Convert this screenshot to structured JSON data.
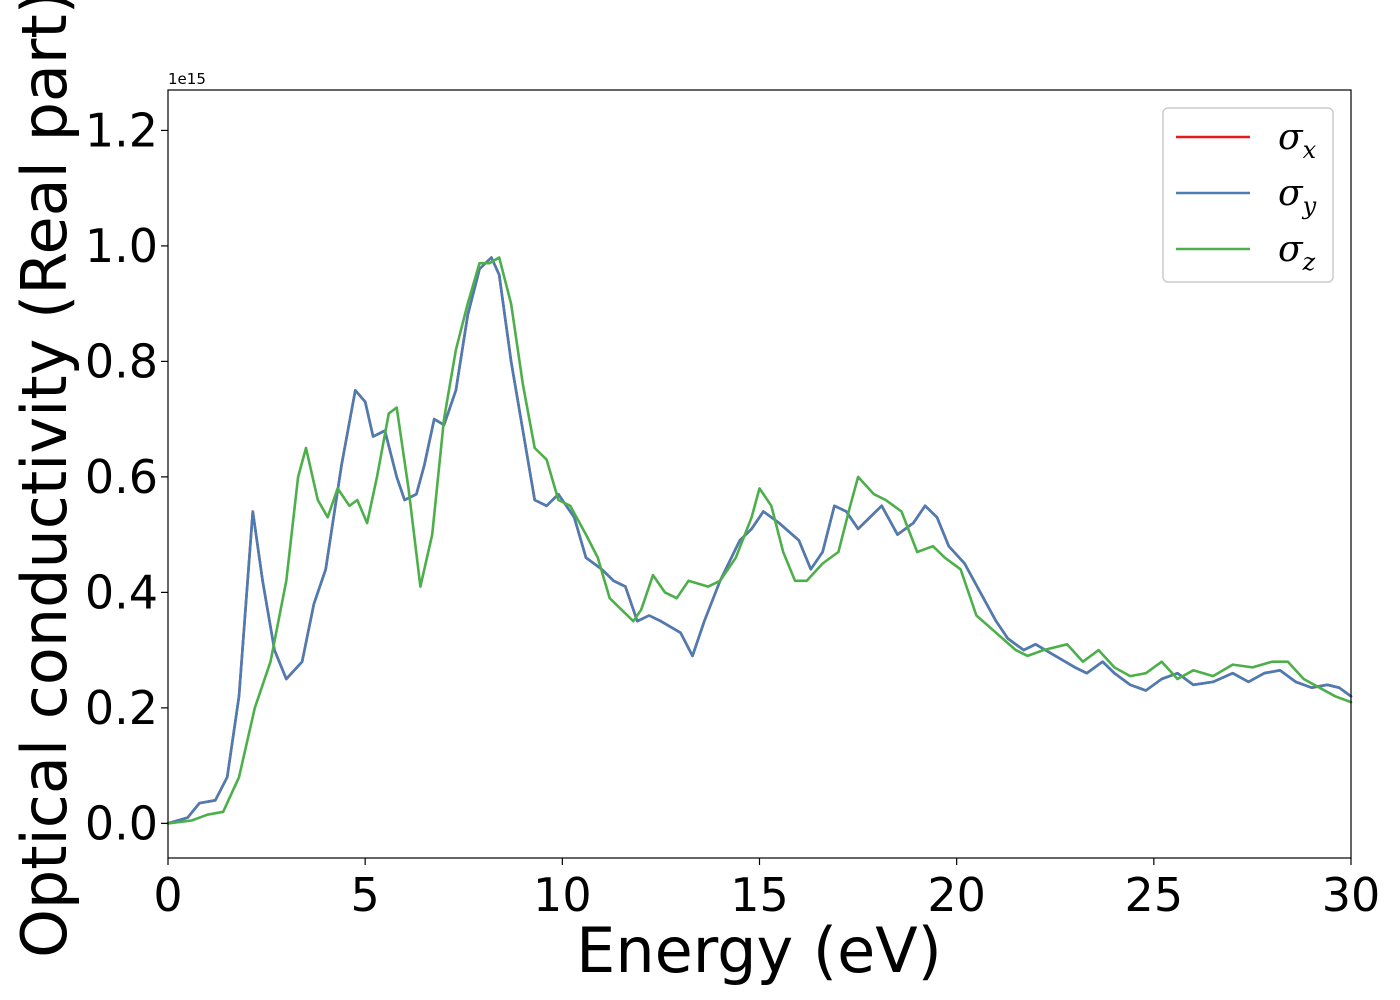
{
  "chart_data": {
    "type": "line",
    "title": "",
    "xlabel": "Energy (eV)",
    "ylabel": "Optical conductivity (Real part)",
    "y_offset_label": "1e15",
    "xlim": [
      0,
      30
    ],
    "ylim": [
      -0.06,
      1.27
    ],
    "xticks": [
      0,
      5,
      10,
      15,
      20,
      25,
      30
    ],
    "yticks": [
      0.0,
      0.2,
      0.4,
      0.6,
      0.8,
      1.0,
      1.2
    ],
    "xtick_labels": [
      "0",
      "5",
      "10",
      "15",
      "20",
      "25",
      "30"
    ],
    "ytick_labels": [
      "0.0",
      "0.2",
      "0.4",
      "0.6",
      "0.8",
      "1.0",
      "1.2"
    ],
    "grid": false,
    "legend_position": "top-right",
    "series": [
      {
        "name": "σx",
        "symbol": "σ",
        "subscript": "x",
        "color": "#e41a1c",
        "points": [
          [
            0,
            0.0
          ],
          [
            0.5,
            0.01
          ],
          [
            0.8,
            0.035
          ],
          [
            1.2,
            0.04
          ],
          [
            1.5,
            0.08
          ],
          [
            1.8,
            0.22
          ],
          [
            2.15,
            0.54
          ],
          [
            2.4,
            0.42
          ],
          [
            2.7,
            0.3
          ],
          [
            3.0,
            0.25
          ],
          [
            3.4,
            0.28
          ],
          [
            3.7,
            0.38
          ],
          [
            4.0,
            0.44
          ],
          [
            4.4,
            0.62
          ],
          [
            4.75,
            0.75
          ],
          [
            5.0,
            0.73
          ],
          [
            5.2,
            0.67
          ],
          [
            5.5,
            0.68
          ],
          [
            5.8,
            0.6
          ],
          [
            6.0,
            0.56
          ],
          [
            6.3,
            0.57
          ],
          [
            6.5,
            0.62
          ],
          [
            6.75,
            0.7
          ],
          [
            7.0,
            0.69
          ],
          [
            7.3,
            0.75
          ],
          [
            7.6,
            0.88
          ],
          [
            7.9,
            0.96
          ],
          [
            8.2,
            0.98
          ],
          [
            8.4,
            0.95
          ],
          [
            8.7,
            0.8
          ],
          [
            9.0,
            0.68
          ],
          [
            9.3,
            0.56
          ],
          [
            9.6,
            0.55
          ],
          [
            9.9,
            0.57
          ],
          [
            10.3,
            0.53
          ],
          [
            10.6,
            0.46
          ],
          [
            11.0,
            0.44
          ],
          [
            11.3,
            0.42
          ],
          [
            11.6,
            0.41
          ],
          [
            11.9,
            0.35
          ],
          [
            12.2,
            0.36
          ],
          [
            12.5,
            0.35
          ],
          [
            13.0,
            0.33
          ],
          [
            13.3,
            0.29
          ],
          [
            13.6,
            0.35
          ],
          [
            14.0,
            0.42
          ],
          [
            14.5,
            0.49
          ],
          [
            14.8,
            0.51
          ],
          [
            15.1,
            0.54
          ],
          [
            15.5,
            0.52
          ],
          [
            16.0,
            0.49
          ],
          [
            16.3,
            0.44
          ],
          [
            16.6,
            0.47
          ],
          [
            16.9,
            0.55
          ],
          [
            17.2,
            0.54
          ],
          [
            17.5,
            0.51
          ],
          [
            17.8,
            0.53
          ],
          [
            18.1,
            0.55
          ],
          [
            18.5,
            0.5
          ],
          [
            18.9,
            0.52
          ],
          [
            19.2,
            0.55
          ],
          [
            19.5,
            0.53
          ],
          [
            19.8,
            0.48
          ],
          [
            20.2,
            0.45
          ],
          [
            20.6,
            0.4
          ],
          [
            21.0,
            0.35
          ],
          [
            21.3,
            0.32
          ],
          [
            21.7,
            0.3
          ],
          [
            22.0,
            0.31
          ],
          [
            22.5,
            0.29
          ],
          [
            23.0,
            0.27
          ],
          [
            23.3,
            0.26
          ],
          [
            23.7,
            0.28
          ],
          [
            24.0,
            0.26
          ],
          [
            24.4,
            0.24
          ],
          [
            24.8,
            0.23
          ],
          [
            25.2,
            0.25
          ],
          [
            25.6,
            0.26
          ],
          [
            26.0,
            0.24
          ],
          [
            26.5,
            0.245
          ],
          [
            27.0,
            0.26
          ],
          [
            27.4,
            0.245
          ],
          [
            27.8,
            0.26
          ],
          [
            28.2,
            0.265
          ],
          [
            28.6,
            0.245
          ],
          [
            29.0,
            0.235
          ],
          [
            29.4,
            0.24
          ],
          [
            29.7,
            0.235
          ],
          [
            30.0,
            0.22
          ]
        ]
      },
      {
        "name": "σy",
        "symbol": "σ",
        "subscript": "y",
        "color": "#4a7db3",
        "points": [
          [
            0,
            0.0
          ],
          [
            0.5,
            0.01
          ],
          [
            0.8,
            0.035
          ],
          [
            1.2,
            0.04
          ],
          [
            1.5,
            0.08
          ],
          [
            1.8,
            0.22
          ],
          [
            2.15,
            0.54
          ],
          [
            2.4,
            0.42
          ],
          [
            2.7,
            0.3
          ],
          [
            3.0,
            0.25
          ],
          [
            3.4,
            0.28
          ],
          [
            3.7,
            0.38
          ],
          [
            4.0,
            0.44
          ],
          [
            4.4,
            0.62
          ],
          [
            4.75,
            0.75
          ],
          [
            5.0,
            0.73
          ],
          [
            5.2,
            0.67
          ],
          [
            5.5,
            0.68
          ],
          [
            5.8,
            0.6
          ],
          [
            6.0,
            0.56
          ],
          [
            6.3,
            0.57
          ],
          [
            6.5,
            0.62
          ],
          [
            6.75,
            0.7
          ],
          [
            7.0,
            0.69
          ],
          [
            7.3,
            0.75
          ],
          [
            7.6,
            0.88
          ],
          [
            7.9,
            0.96
          ],
          [
            8.2,
            0.98
          ],
          [
            8.4,
            0.95
          ],
          [
            8.7,
            0.8
          ],
          [
            9.0,
            0.68
          ],
          [
            9.3,
            0.56
          ],
          [
            9.6,
            0.55
          ],
          [
            9.9,
            0.57
          ],
          [
            10.3,
            0.53
          ],
          [
            10.6,
            0.46
          ],
          [
            11.0,
            0.44
          ],
          [
            11.3,
            0.42
          ],
          [
            11.6,
            0.41
          ],
          [
            11.9,
            0.35
          ],
          [
            12.2,
            0.36
          ],
          [
            12.5,
            0.35
          ],
          [
            13.0,
            0.33
          ],
          [
            13.3,
            0.29
          ],
          [
            13.6,
            0.35
          ],
          [
            14.0,
            0.42
          ],
          [
            14.5,
            0.49
          ],
          [
            14.8,
            0.51
          ],
          [
            15.1,
            0.54
          ],
          [
            15.5,
            0.52
          ],
          [
            16.0,
            0.49
          ],
          [
            16.3,
            0.44
          ],
          [
            16.6,
            0.47
          ],
          [
            16.9,
            0.55
          ],
          [
            17.2,
            0.54
          ],
          [
            17.5,
            0.51
          ],
          [
            17.8,
            0.53
          ],
          [
            18.1,
            0.55
          ],
          [
            18.5,
            0.5
          ],
          [
            18.9,
            0.52
          ],
          [
            19.2,
            0.55
          ],
          [
            19.5,
            0.53
          ],
          [
            19.8,
            0.48
          ],
          [
            20.2,
            0.45
          ],
          [
            20.6,
            0.4
          ],
          [
            21.0,
            0.35
          ],
          [
            21.3,
            0.32
          ],
          [
            21.7,
            0.3
          ],
          [
            22.0,
            0.31
          ],
          [
            22.5,
            0.29
          ],
          [
            23.0,
            0.27
          ],
          [
            23.3,
            0.26
          ],
          [
            23.7,
            0.28
          ],
          [
            24.0,
            0.26
          ],
          [
            24.4,
            0.24
          ],
          [
            24.8,
            0.23
          ],
          [
            25.2,
            0.25
          ],
          [
            25.6,
            0.26
          ],
          [
            26.0,
            0.24
          ],
          [
            26.5,
            0.245
          ],
          [
            27.0,
            0.26
          ],
          [
            27.4,
            0.245
          ],
          [
            27.8,
            0.26
          ],
          [
            28.2,
            0.265
          ],
          [
            28.6,
            0.245
          ],
          [
            29.0,
            0.235
          ],
          [
            29.4,
            0.24
          ],
          [
            29.7,
            0.235
          ],
          [
            30.0,
            0.22
          ]
        ]
      },
      {
        "name": "σz",
        "symbol": "σ",
        "subscript": "z",
        "color": "#4daf4a",
        "points": [
          [
            0,
            0.0
          ],
          [
            0.6,
            0.005
          ],
          [
            1.0,
            0.015
          ],
          [
            1.4,
            0.02
          ],
          [
            1.8,
            0.08
          ],
          [
            2.2,
            0.2
          ],
          [
            2.6,
            0.28
          ],
          [
            3.0,
            0.42
          ],
          [
            3.3,
            0.6
          ],
          [
            3.5,
            0.65
          ],
          [
            3.8,
            0.56
          ],
          [
            4.05,
            0.53
          ],
          [
            4.3,
            0.58
          ],
          [
            4.6,
            0.55
          ],
          [
            4.8,
            0.56
          ],
          [
            5.05,
            0.52
          ],
          [
            5.3,
            0.6
          ],
          [
            5.6,
            0.71
          ],
          [
            5.8,
            0.72
          ],
          [
            6.1,
            0.58
          ],
          [
            6.4,
            0.41
          ],
          [
            6.7,
            0.5
          ],
          [
            7.0,
            0.7
          ],
          [
            7.3,
            0.82
          ],
          [
            7.6,
            0.9
          ],
          [
            7.9,
            0.97
          ],
          [
            8.15,
            0.97
          ],
          [
            8.4,
            0.98
          ],
          [
            8.7,
            0.9
          ],
          [
            9.0,
            0.76
          ],
          [
            9.3,
            0.65
          ],
          [
            9.6,
            0.63
          ],
          [
            9.9,
            0.56
          ],
          [
            10.2,
            0.55
          ],
          [
            10.6,
            0.5
          ],
          [
            10.9,
            0.46
          ],
          [
            11.2,
            0.39
          ],
          [
            11.5,
            0.37
          ],
          [
            11.8,
            0.35
          ],
          [
            12.0,
            0.37
          ],
          [
            12.3,
            0.43
          ],
          [
            12.6,
            0.4
          ],
          [
            12.9,
            0.39
          ],
          [
            13.2,
            0.42
          ],
          [
            13.7,
            0.41
          ],
          [
            14.0,
            0.42
          ],
          [
            14.4,
            0.46
          ],
          [
            14.8,
            0.53
          ],
          [
            15.0,
            0.58
          ],
          [
            15.3,
            0.55
          ],
          [
            15.6,
            0.47
          ],
          [
            15.9,
            0.42
          ],
          [
            16.2,
            0.42
          ],
          [
            16.6,
            0.45
          ],
          [
            17.0,
            0.47
          ],
          [
            17.3,
            0.55
          ],
          [
            17.5,
            0.6
          ],
          [
            17.9,
            0.57
          ],
          [
            18.2,
            0.56
          ],
          [
            18.6,
            0.54
          ],
          [
            19.0,
            0.47
          ],
          [
            19.4,
            0.48
          ],
          [
            19.7,
            0.46
          ],
          [
            20.1,
            0.44
          ],
          [
            20.5,
            0.36
          ],
          [
            21.0,
            0.33
          ],
          [
            21.5,
            0.3
          ],
          [
            21.8,
            0.29
          ],
          [
            22.2,
            0.3
          ],
          [
            22.8,
            0.31
          ],
          [
            23.2,
            0.28
          ],
          [
            23.6,
            0.3
          ],
          [
            24.0,
            0.27
          ],
          [
            24.4,
            0.255
          ],
          [
            24.8,
            0.26
          ],
          [
            25.2,
            0.28
          ],
          [
            25.6,
            0.25
          ],
          [
            26.0,
            0.265
          ],
          [
            26.5,
            0.255
          ],
          [
            27.0,
            0.275
          ],
          [
            27.5,
            0.27
          ],
          [
            28.0,
            0.28
          ],
          [
            28.4,
            0.28
          ],
          [
            28.8,
            0.25
          ],
          [
            29.2,
            0.235
          ],
          [
            29.6,
            0.22
          ],
          [
            30.0,
            0.21
          ]
        ]
      }
    ]
  }
}
